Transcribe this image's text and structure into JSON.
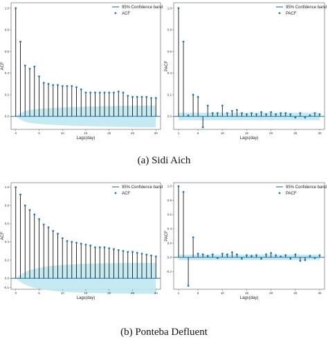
{
  "captions": {
    "a": "(a) Sidi Aich",
    "b": "(b) Ponteba Defluent"
  },
  "colors": {
    "band_fill": "#bfe8ef",
    "band_line": "#2f7fb5",
    "marker": "#1f77b4",
    "stem": "#111111",
    "axis": "#555555"
  },
  "chart_data": [
    {
      "id": "sidi-aich-acf",
      "type": "stem",
      "title": "",
      "xlabel": "Lags(day)",
      "ylabel": "ACF",
      "xlim": [
        -1,
        31
      ],
      "ylim": [
        -0.12,
        1.05
      ],
      "xticks": [
        0,
        5,
        10,
        15,
        20,
        25,
        30
      ],
      "yticks": [
        0.0,
        0.2,
        0.4,
        0.6,
        0.8,
        1.0
      ],
      "legend": {
        "position": "top-right",
        "band": "95% Confidence band",
        "series": "ACF"
      },
      "lags": [
        0,
        1,
        2,
        3,
        4,
        5,
        6,
        7,
        8,
        9,
        10,
        11,
        12,
        13,
        14,
        15,
        16,
        17,
        18,
        19,
        20,
        21,
        22,
        23,
        24,
        25,
        26,
        27,
        28,
        29,
        30
      ],
      "values": [
        1.0,
        0.69,
        0.47,
        0.44,
        0.46,
        0.37,
        0.31,
        0.3,
        0.29,
        0.29,
        0.28,
        0.28,
        0.28,
        0.27,
        0.25,
        0.22,
        0.22,
        0.22,
        0.22,
        0.22,
        0.22,
        0.22,
        0.23,
        0.22,
        0.19,
        0.18,
        0.18,
        0.18,
        0.18,
        0.17,
        0.17
      ],
      "band_upper": [
        0.0,
        0.03,
        0.05,
        0.06,
        0.065,
        0.07,
        0.073,
        0.076,
        0.078,
        0.08,
        0.082,
        0.084,
        0.086,
        0.087,
        0.089,
        0.09,
        0.091,
        0.092,
        0.093,
        0.094,
        0.095,
        0.096,
        0.097,
        0.097,
        0.098,
        0.099,
        0.1,
        0.1,
        0.1,
        0.1,
        0.1
      ],
      "band_lower": [
        0.0,
        -0.03,
        -0.05,
        -0.06,
        -0.065,
        -0.07,
        -0.073,
        -0.076,
        -0.078,
        -0.08,
        -0.082,
        -0.084,
        -0.086,
        -0.087,
        -0.089,
        -0.09,
        -0.091,
        -0.092,
        -0.093,
        -0.094,
        -0.095,
        -0.096,
        -0.097,
        -0.097,
        -0.098,
        -0.099,
        -0.1,
        -0.1,
        -0.1,
        -0.1,
        -0.1
      ]
    },
    {
      "id": "sidi-aich-pacf",
      "type": "stem",
      "title": "",
      "xlabel": "Lags(day)",
      "ylabel": "PACF",
      "xlim": [
        0,
        31
      ],
      "ylim": [
        -0.12,
        1.05
      ],
      "xticks": [
        1,
        5,
        10,
        15,
        20,
        25,
        30
      ],
      "yticks": [
        0.0,
        0.2,
        0.4,
        0.6,
        0.8,
        1.0
      ],
      "legend": {
        "position": "top-right",
        "band": "95% Confidence band",
        "series": "PACF"
      },
      "lags": [
        1,
        2,
        3,
        4,
        5,
        6,
        7,
        8,
        9,
        10,
        11,
        12,
        13,
        14,
        15,
        16,
        17,
        18,
        19,
        20,
        21,
        22,
        23,
        24,
        25,
        26,
        27,
        28,
        29,
        30
      ],
      "values": [
        1.0,
        0.69,
        0.01,
        0.2,
        0.18,
        -0.1,
        0.1,
        0.03,
        0.03,
        0.1,
        0.03,
        0.05,
        0.06,
        0.03,
        0.02,
        0.03,
        0.02,
        0.04,
        0.02,
        0.04,
        0.02,
        0.03,
        0.03,
        0.02,
        -0.01,
        0.03,
        -0.01,
        0.01,
        0.03,
        0.02
      ],
      "band_upper": [
        0.035,
        0.035,
        0.035,
        0.035,
        0.035,
        0.035,
        0.035,
        0.035,
        0.035,
        0.035,
        0.035,
        0.035,
        0.035,
        0.035,
        0.035,
        0.035,
        0.035,
        0.035,
        0.035,
        0.035,
        0.035,
        0.035,
        0.035,
        0.035,
        0.035,
        0.035,
        0.035,
        0.035,
        0.035,
        0.035
      ],
      "band_lower": [
        -0.035,
        -0.035,
        -0.035,
        -0.035,
        -0.035,
        -0.035,
        -0.035,
        -0.035,
        -0.035,
        -0.035,
        -0.035,
        -0.035,
        -0.035,
        -0.035,
        -0.035,
        -0.035,
        -0.035,
        -0.035,
        -0.035,
        -0.035,
        -0.035,
        -0.035,
        -0.035,
        -0.035,
        -0.035,
        -0.035,
        -0.035,
        -0.035,
        -0.035,
        -0.035
      ]
    },
    {
      "id": "ponteba-acf",
      "type": "stem",
      "title": "",
      "xlabel": "Lags(day)",
      "ylabel": "ACF",
      "xlim": [
        -1,
        31
      ],
      "ylim": [
        -0.12,
        1.05
      ],
      "xticks": [
        0,
        5,
        10,
        15,
        20,
        25,
        30
      ],
      "yticks": [
        -0.1,
        0.0,
        0.2,
        0.4,
        0.6,
        0.8,
        1.0
      ],
      "ytick_labels": [
        "-0.1",
        "0.0",
        "0.2",
        "0.4",
        "0.6",
        "0.8",
        "1.0"
      ],
      "legend": {
        "position": "top-right",
        "band": "95% Confidence band",
        "series": "ACF"
      },
      "lags": [
        0,
        1,
        2,
        3,
        4,
        5,
        6,
        7,
        8,
        9,
        10,
        11,
        12,
        13,
        14,
        15,
        16,
        17,
        18,
        19,
        20,
        21,
        22,
        23,
        24,
        25,
        26,
        27,
        28,
        29,
        30
      ],
      "values": [
        1.0,
        0.92,
        0.8,
        0.75,
        0.7,
        0.65,
        0.59,
        0.56,
        0.52,
        0.49,
        0.44,
        0.41,
        0.4,
        0.39,
        0.38,
        0.37,
        0.36,
        0.34,
        0.34,
        0.34,
        0.33,
        0.32,
        0.31,
        0.3,
        0.29,
        0.29,
        0.28,
        0.27,
        0.26,
        0.25,
        0.24
      ],
      "band_upper": [
        0.0,
        0.04,
        0.07,
        0.09,
        0.105,
        0.115,
        0.125,
        0.132,
        0.138,
        0.143,
        0.147,
        0.15,
        0.153,
        0.156,
        0.158,
        0.16,
        0.162,
        0.163,
        0.164,
        0.165,
        0.166,
        0.167,
        0.168,
        0.168,
        0.169,
        0.17,
        0.17,
        0.17,
        0.17,
        0.17,
        0.17
      ],
      "band_lower": [
        0.0,
        -0.04,
        -0.07,
        -0.09,
        -0.105,
        -0.115,
        -0.125,
        -0.132,
        -0.138,
        -0.143,
        -0.147,
        -0.15,
        -0.153,
        -0.156,
        -0.158,
        -0.16,
        -0.162,
        -0.163,
        -0.164,
        -0.165,
        -0.166,
        -0.167,
        -0.168,
        -0.168,
        -0.169,
        -0.17,
        -0.17,
        -0.17,
        -0.17,
        -0.17,
        -0.17
      ]
    },
    {
      "id": "ponteba-pacf",
      "type": "stem",
      "title": "",
      "xlabel": "Lags(day)",
      "ylabel": "PACF",
      "xlim": [
        0,
        31
      ],
      "ylim": [
        -0.45,
        1.05
      ],
      "xticks": [
        1,
        5,
        10,
        15,
        20,
        25,
        30
      ],
      "yticks": [
        -0.2,
        0.0,
        0.2,
        0.4,
        0.6,
        0.8,
        1.0
      ],
      "legend": {
        "position": "top-right",
        "band": "95% Confidence band",
        "series": "PACF"
      },
      "lags": [
        1,
        2,
        3,
        4,
        5,
        6,
        7,
        8,
        9,
        10,
        11,
        12,
        13,
        14,
        15,
        16,
        17,
        18,
        19,
        20,
        21,
        22,
        23,
        24,
        25,
        26,
        27,
        28,
        29,
        30
      ],
      "values": [
        1.0,
        0.92,
        -0.4,
        0.28,
        0.05,
        0.04,
        0.02,
        0.04,
        -0.01,
        0.05,
        0.04,
        0.07,
        0.04,
        -0.02,
        0.03,
        0.02,
        0.03,
        -0.02,
        0.04,
        0.06,
        0.03,
        0.01,
        0.03,
        -0.02,
        0.04,
        -0.05,
        -0.04,
        0.02,
        -0.01,
        0.03
      ],
      "band_upper": [
        0.04,
        0.04,
        0.04,
        0.04,
        0.04,
        0.04,
        0.04,
        0.04,
        0.04,
        0.04,
        0.04,
        0.04,
        0.04,
        0.04,
        0.04,
        0.04,
        0.04,
        0.04,
        0.04,
        0.04,
        0.04,
        0.04,
        0.04,
        0.04,
        0.04,
        0.04,
        0.04,
        0.04,
        0.04,
        0.04
      ],
      "band_lower": [
        -0.04,
        -0.04,
        -0.04,
        -0.04,
        -0.04,
        -0.04,
        -0.04,
        -0.04,
        -0.04,
        -0.04,
        -0.04,
        -0.04,
        -0.04,
        -0.04,
        -0.04,
        -0.04,
        -0.04,
        -0.04,
        -0.04,
        -0.04,
        -0.04,
        -0.04,
        -0.04,
        -0.04,
        -0.04,
        -0.04,
        -0.04,
        -0.04,
        -0.04,
        -0.04
      ]
    }
  ]
}
